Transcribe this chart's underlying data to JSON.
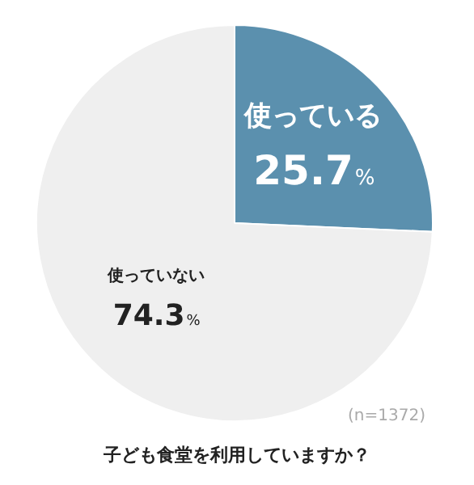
{
  "chart_data": {
    "type": "pie",
    "title": "子ども食堂を利用していますか？",
    "categories": [
      "使っている",
      "使っていない"
    ],
    "values": [
      25.7,
      74.3
    ],
    "colors": [
      "#5b90ae",
      "#efefef"
    ],
    "value_labels": [
      "25.7%",
      "74.3%"
    ],
    "annotations": [
      "(n=1372)"
    ]
  }
}
